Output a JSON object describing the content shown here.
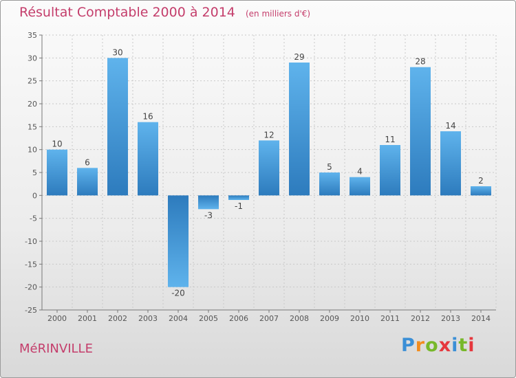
{
  "chart_data": {
    "type": "bar",
    "title": "Résultat Comptable 2000 à 2014",
    "unit_note": "(en milliers d'€)",
    "categories": [
      "2000",
      "2001",
      "2002",
      "2003",
      "2004",
      "2005",
      "2006",
      "2007",
      "2008",
      "2009",
      "2010",
      "2011",
      "2012",
      "2013",
      "2014"
    ],
    "values": [
      10,
      6,
      30,
      16,
      -20,
      -3,
      -1,
      12,
      29,
      5,
      4,
      11,
      28,
      14,
      2
    ],
    "ylim": [
      -25,
      35
    ],
    "yticks": [
      35,
      30,
      25,
      20,
      15,
      10,
      5,
      0,
      -5,
      -10,
      -15,
      -20,
      -25
    ],
    "grid": true,
    "xlabel": "",
    "ylabel": ""
  },
  "footer": {
    "town": "MéRINVILLE",
    "logo_letters": [
      "P",
      "r",
      "o",
      "x",
      "i",
      "t",
      "i"
    ]
  },
  "colors": {
    "title": "#c43d6b",
    "bar_light": "#5aaeea",
    "bar_dark": "#2f7fc1"
  }
}
